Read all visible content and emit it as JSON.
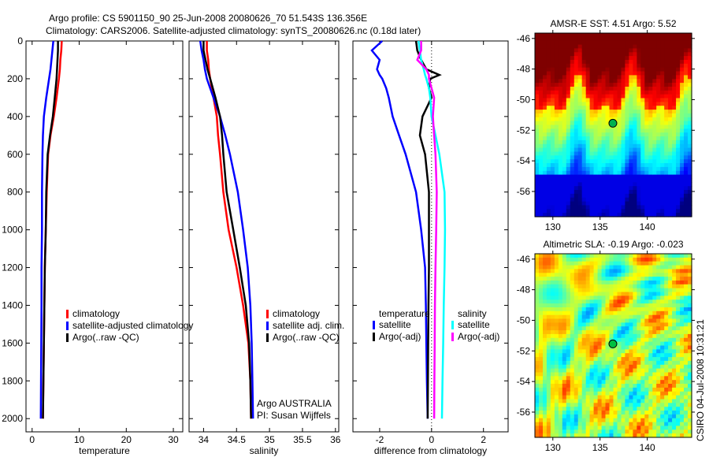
{
  "title": {
    "line1": "Argo profile: CS 5901150_90 25-Jun-2008 20080626_70 51.543S 136.356E",
    "line2": "Climatology: CARS2006. Satellite-adjusted climatology: synTS_20080626.nc (0.18d later)"
  },
  "stamp": "CSIRO 04-Jul-2008 10:31:21",
  "colors": {
    "clim": "#ff0000",
    "sat": "#0000ff",
    "argo": "#000000",
    "sal_sat": "#00ffff",
    "sal_argo": "#ff00ff"
  },
  "chart_data": [
    {
      "type": "line",
      "xlabel": "temperature",
      "ylabel": "",
      "xlim": [
        -1.3,
        32
      ],
      "ylim": [
        2070,
        0
      ],
      "xticks": [
        0,
        10,
        20,
        30
      ],
      "yticks": [
        0,
        200,
        400,
        600,
        800,
        1000,
        1200,
        1400,
        1600,
        1800,
        2000
      ],
      "depth": [
        0,
        50,
        100,
        150,
        200,
        300,
        400,
        500,
        600,
        800,
        1000,
        1200,
        1400,
        1600,
        1800,
        2000
      ],
      "series": [
        {
          "name": "climatology",
          "color": "#ff0000",
          "values": [
            6.3,
            6.2,
            6.0,
            5.9,
            5.7,
            5.2,
            4.6,
            3.9,
            3.4,
            3.1,
            2.9,
            2.7,
            2.6,
            2.5,
            2.4,
            2.3
          ]
        },
        {
          "name": "satellite-adjusted climatology",
          "color": "#0000ff",
          "values": [
            4.5,
            4.3,
            4.1,
            3.9,
            3.6,
            3.0,
            2.5,
            2.3,
            2.2,
            2.1,
            2.1,
            2.0,
            2.0,
            1.95,
            1.9,
            1.85
          ]
        },
        {
          "name": "Argo(..raw -QC)",
          "color": "#000000",
          "values": [
            5.5,
            5.5,
            5.4,
            5.3,
            5.2,
            4.8,
            4.4,
            3.8,
            3.3,
            3.0,
            2.9,
            2.7,
            2.6,
            2.5,
            2.4,
            2.3
          ]
        }
      ],
      "legend": [
        "climatology",
        "satellite-adjusted climatology",
        "Argo(..raw -QC)"
      ]
    },
    {
      "type": "line",
      "xlabel": "salinity",
      "xlim": [
        33.78,
        36.05
      ],
      "ylim": [
        2070,
        0
      ],
      "xticks": [
        34,
        34.5,
        35,
        35.5,
        36
      ],
      "depth": [
        0,
        50,
        100,
        150,
        200,
        300,
        400,
        500,
        600,
        800,
        1000,
        1200,
        1400,
        1600,
        1800,
        2000
      ],
      "series": [
        {
          "name": "climatology",
          "color": "#ff0000",
          "values": [
            34.05,
            34.05,
            34.07,
            34.08,
            34.1,
            34.15,
            34.2,
            34.22,
            34.25,
            34.3,
            34.38,
            34.5,
            34.6,
            34.68,
            34.71,
            34.72
          ]
        },
        {
          "name": "satellite adj. clim.",
          "color": "#0000ff",
          "values": [
            33.95,
            33.97,
            34.0,
            34.02,
            34.05,
            34.15,
            34.25,
            34.33,
            34.4,
            34.52,
            34.6,
            34.67,
            34.71,
            34.73,
            34.74,
            34.75
          ]
        },
        {
          "name": "Argo(..raw -QC)",
          "color": "#000000",
          "values": [
            34.0,
            34.0,
            34.03,
            34.06,
            34.1,
            34.18,
            34.25,
            34.28,
            34.3,
            34.35,
            34.45,
            34.55,
            34.64,
            34.69,
            34.71,
            34.72
          ]
        }
      ],
      "legend": [
        "climatology",
        "satellite adj. clim.",
        "Argo(..raw -QC)"
      ],
      "annotations": [
        "Argo AUSTRALIA",
        "PI: Susan Wijffels"
      ]
    },
    {
      "type": "line",
      "xlabel": "difference from climatology",
      "xlim": [
        -3.03,
        2.95
      ],
      "ylim": [
        2070,
        0
      ],
      "xticks": [
        -2,
        0,
        2
      ],
      "depth": [
        0,
        50,
        100,
        150,
        180,
        200,
        250,
        300,
        400,
        500,
        600,
        800,
        1000,
        1200,
        1400,
        1600,
        1800,
        2000
      ],
      "series": [
        {
          "name": "temperature satellite",
          "color": "#0000ff",
          "values": [
            -1.9,
            -2.3,
            -2.0,
            -2.1,
            -2.0,
            -1.9,
            -1.75,
            -1.65,
            -1.5,
            -1.25,
            -1.0,
            -0.6,
            -0.4,
            -0.25,
            -0.22,
            -0.2,
            -0.18,
            -0.15
          ]
        },
        {
          "name": "temperature Argo(-adj)",
          "color": "#000000",
          "values": [
            -0.6,
            -0.55,
            -0.4,
            -0.2,
            0.3,
            -0.05,
            -0.1,
            0.0,
            -0.35,
            -0.45,
            -0.25,
            -0.1,
            -0.1,
            -0.1,
            -0.12,
            -0.13,
            -0.14,
            -0.15
          ]
        },
        {
          "name": "salinity satellite",
          "color": "#00ffff",
          "values": [
            -0.5,
            -0.45,
            -0.4,
            -0.3,
            -0.25,
            -0.2,
            -0.1,
            -0.05,
            0.0,
            0.15,
            0.3,
            0.5,
            0.52,
            0.5,
            0.47,
            0.45,
            0.42,
            0.4
          ]
        },
        {
          "name": "salinity Argo(-adj)",
          "color": "#ff00ff",
          "values": [
            -0.4,
            -0.4,
            -0.55,
            -0.2,
            -0.1,
            -0.1,
            0.0,
            0.1,
            0.05,
            0.1,
            0.15,
            0.2,
            0.18,
            0.15,
            0.13,
            0.12,
            0.11,
            0.1
          ]
        }
      ],
      "legend_headers": [
        "temperature",
        "salinity"
      ],
      "legend": [
        "satellite",
        "Argo(-adj)",
        "satellite",
        "Argo(-adj)"
      ]
    },
    {
      "type": "heatmap",
      "title": "AMSR-E SST: 4.51 Argo: 5.52",
      "xlim": [
        128.1,
        144.7
      ],
      "ylim": [
        -57.65,
        -45.65
      ],
      "xticks": [
        130,
        135,
        140
      ],
      "yticks": [
        -46,
        -48,
        -50,
        -52,
        -54,
        -56
      ],
      "marker": {
        "lon": 136.356,
        "lat": -51.543
      }
    },
    {
      "type": "heatmap",
      "title": "Altimetric SLA: -0.19 Argo: -0.023",
      "xlim": [
        128.1,
        144.7
      ],
      "ylim": [
        -57.65,
        -45.65
      ],
      "xticks": [
        130,
        135,
        140
      ],
      "yticks": [
        -46,
        -48,
        -50,
        -52,
        -54,
        -56
      ],
      "marker": {
        "lon": 136.356,
        "lat": -51.543
      }
    }
  ]
}
